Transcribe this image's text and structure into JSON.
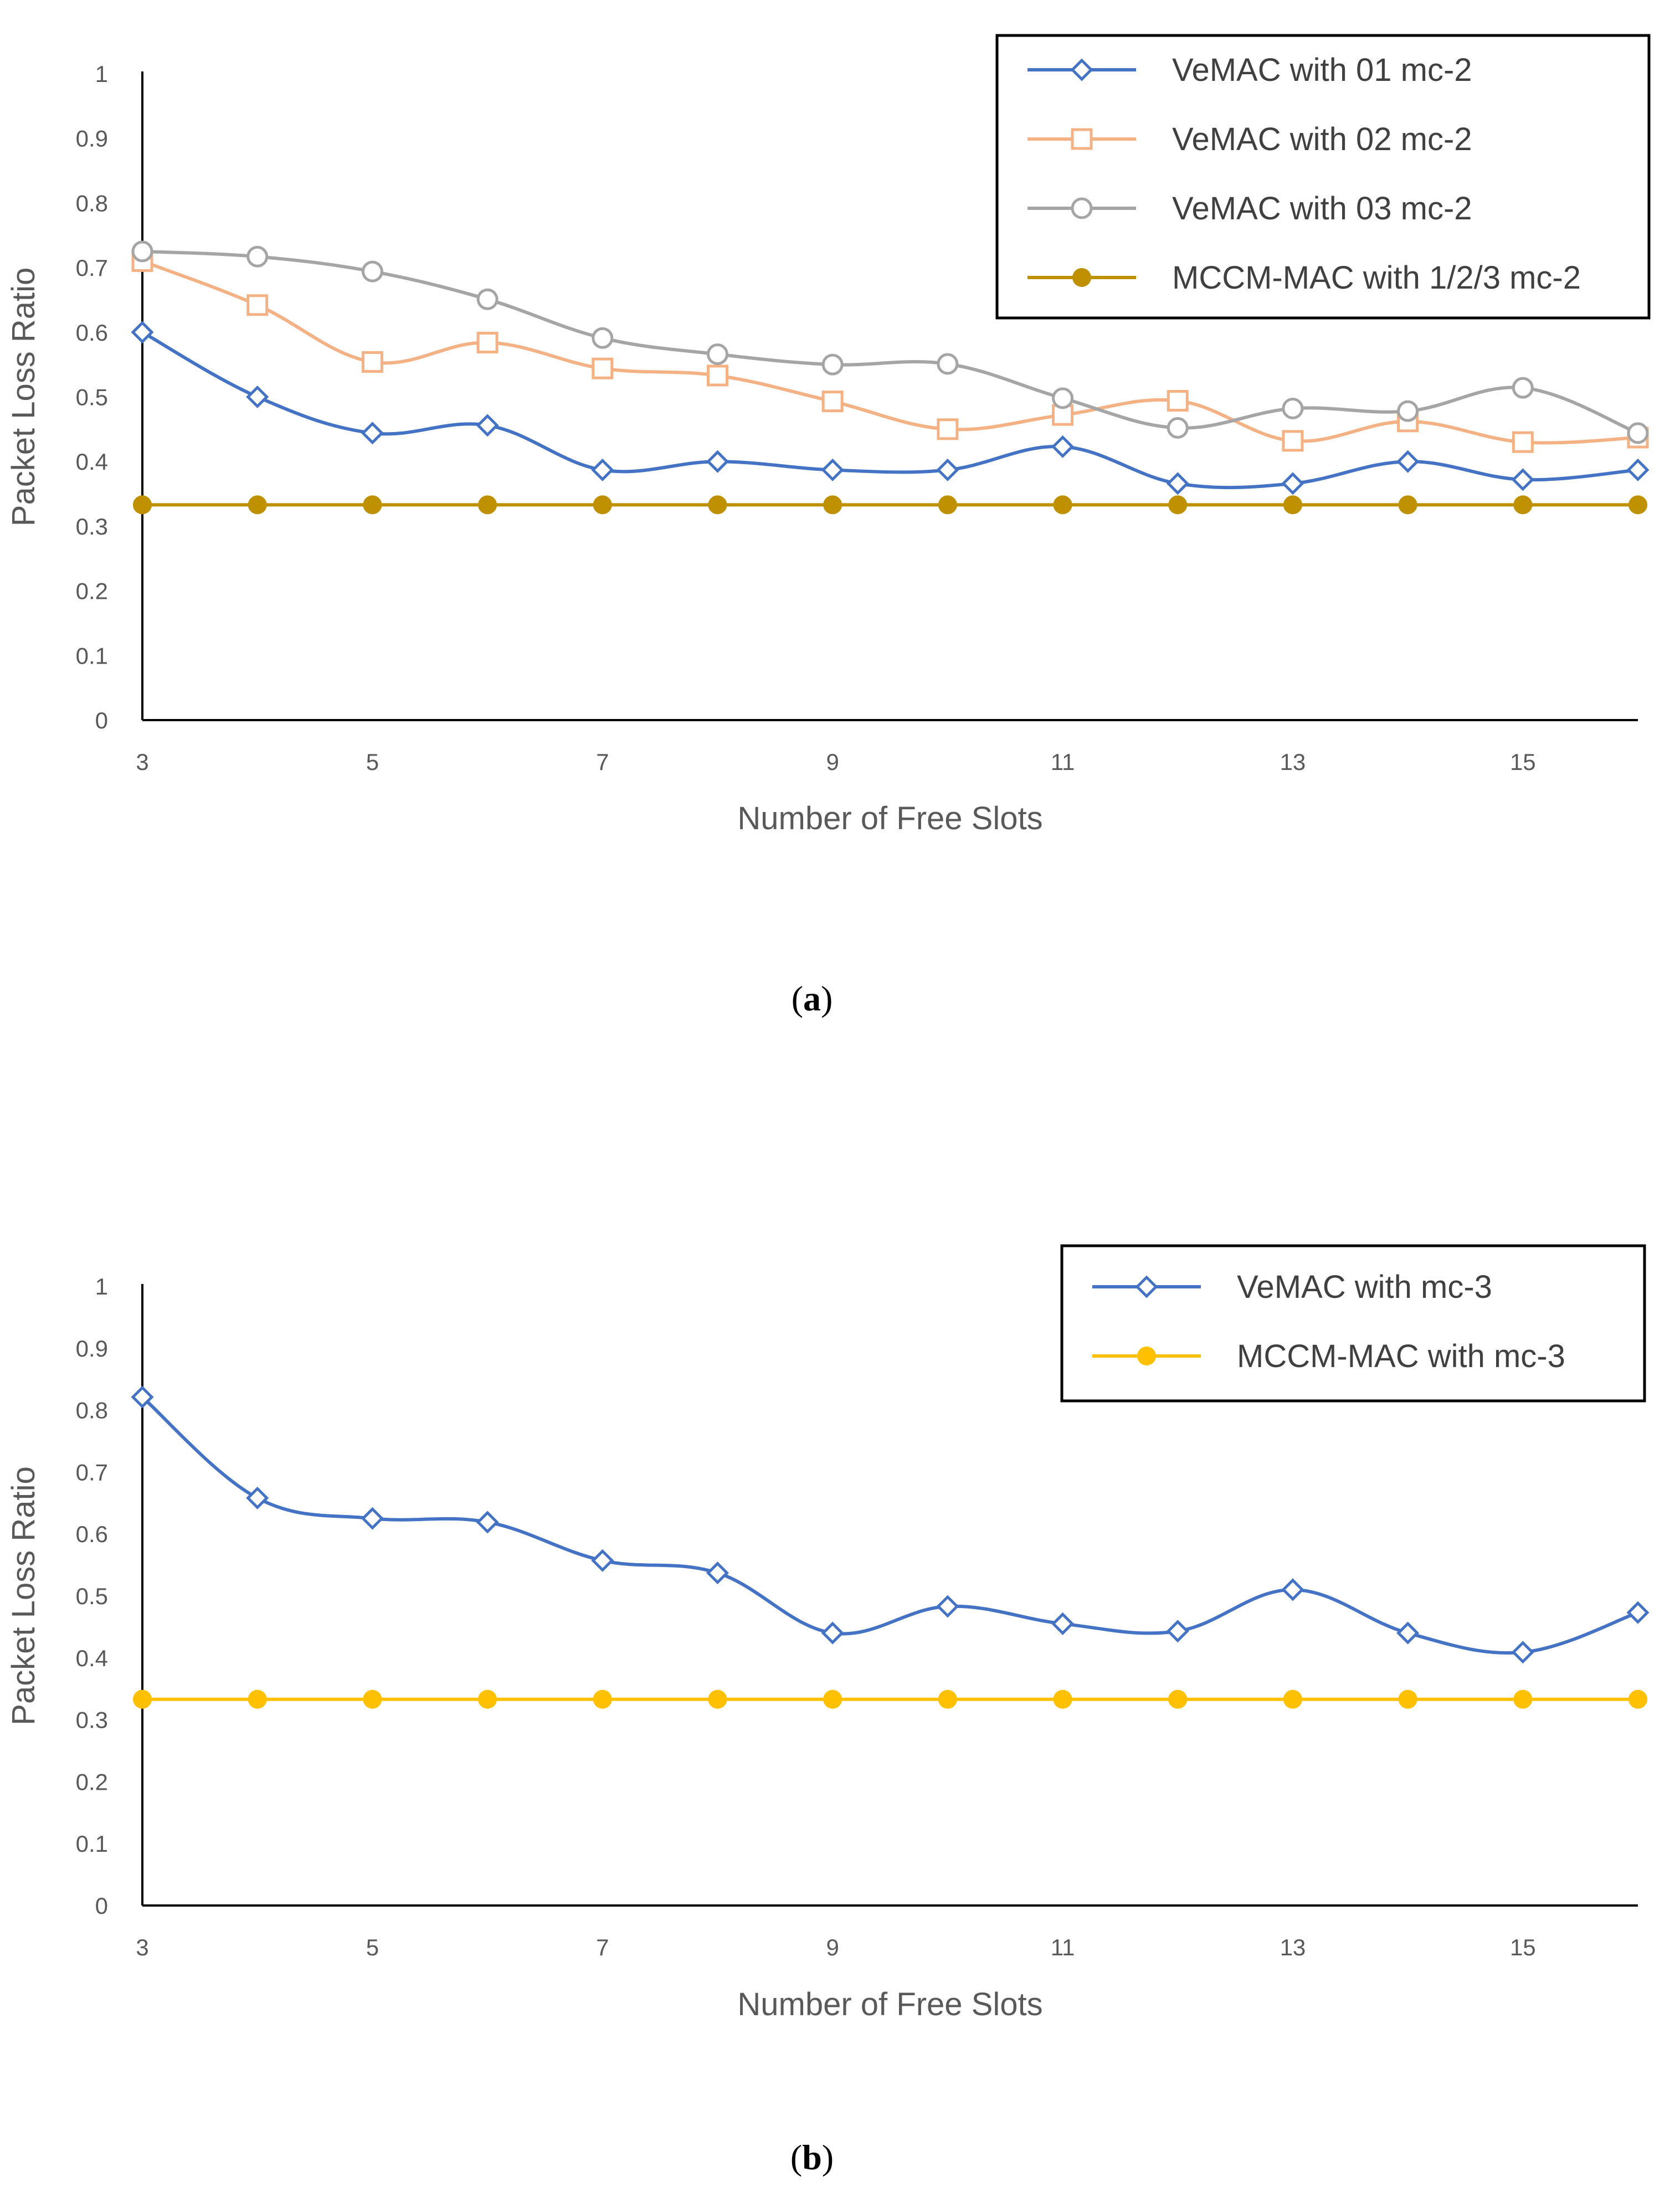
{
  "chart_data": [
    {
      "type": "line",
      "panel": "a",
      "xlabel": "Number of Free Slots",
      "ylabel": "Packet Loss Ratio",
      "xlim": [
        3,
        16
      ],
      "ylim": [
        0,
        1
      ],
      "xticks": [
        3,
        5,
        7,
        9,
        11,
        13,
        15
      ],
      "yticks": [
        0,
        0.1,
        0.2,
        0.3,
        0.4,
        0.5,
        0.6,
        0.7,
        0.8,
        0.9,
        1
      ],
      "x": [
        3,
        4,
        5,
        6,
        7,
        8,
        9,
        10,
        11,
        12,
        13,
        14,
        15,
        16
      ],
      "legend_position": "top-right",
      "series": [
        {
          "name": "VeMAC with 01 mc-2",
          "color": "#4472C4",
          "marker": "diamond",
          "values": [
            0.6,
            0.5,
            0.444,
            0.456,
            0.387,
            0.4,
            0.387,
            0.387,
            0.423,
            0.366,
            0.366,
            0.4,
            0.372,
            0.387
          ]
        },
        {
          "name": "VeMAC with 02 mc-2",
          "color": "#F4B183",
          "marker": "square",
          "values": [
            0.71,
            0.642,
            0.554,
            0.584,
            0.544,
            0.533,
            0.493,
            0.45,
            0.472,
            0.494,
            0.432,
            0.462,
            0.43,
            0.437
          ]
        },
        {
          "name": "VeMAC with 03 mc-2",
          "color": "#A5A5A5",
          "marker": "circle",
          "values": [
            0.725,
            0.717,
            0.694,
            0.651,
            0.591,
            0.566,
            0.55,
            0.551,
            0.498,
            0.452,
            0.482,
            0.478,
            0.514,
            0.444
          ]
        },
        {
          "name": "MCCM-MAC with 1/2/3 mc-2",
          "color": "#BF9000",
          "marker": "dot",
          "values": [
            0.333,
            0.333,
            0.333,
            0.333,
            0.333,
            0.333,
            0.333,
            0.333,
            0.333,
            0.333,
            0.333,
            0.333,
            0.333,
            0.333
          ]
        }
      ]
    },
    {
      "type": "line",
      "panel": "b",
      "xlabel": "Number of Free Slots",
      "ylabel": "Packet Loss Ratio",
      "xlim": [
        3,
        16
      ],
      "ylim": [
        0,
        1
      ],
      "xticks": [
        3,
        5,
        7,
        9,
        11,
        13,
        15
      ],
      "yticks": [
        0,
        0.1,
        0.2,
        0.3,
        0.4,
        0.5,
        0.6,
        0.7,
        0.8,
        0.9,
        1
      ],
      "x": [
        3,
        4,
        5,
        6,
        7,
        8,
        9,
        10,
        11,
        12,
        13,
        14,
        15,
        16
      ],
      "legend_position": "top-right",
      "series": [
        {
          "name": "VeMAC with mc-3",
          "color": "#4472C4",
          "marker": "diamond",
          "values": [
            0.821,
            0.658,
            0.625,
            0.619,
            0.557,
            0.537,
            0.44,
            0.483,
            0.455,
            0.443,
            0.51,
            0.44,
            0.409,
            0.473
          ]
        },
        {
          "name": "MCCM-MAC with mc-3",
          "color": "#FFC000",
          "marker": "dot",
          "values": [
            0.333,
            0.333,
            0.333,
            0.333,
            0.333,
            0.333,
            0.333,
            0.333,
            0.333,
            0.333,
            0.333,
            0.333,
            0.333,
            0.333
          ]
        }
      ]
    }
  ],
  "captions": {
    "a": {
      "open": "(",
      "letter": "a",
      "close": ")"
    },
    "b": {
      "open": "(",
      "letter": "b",
      "close": ")"
    }
  }
}
